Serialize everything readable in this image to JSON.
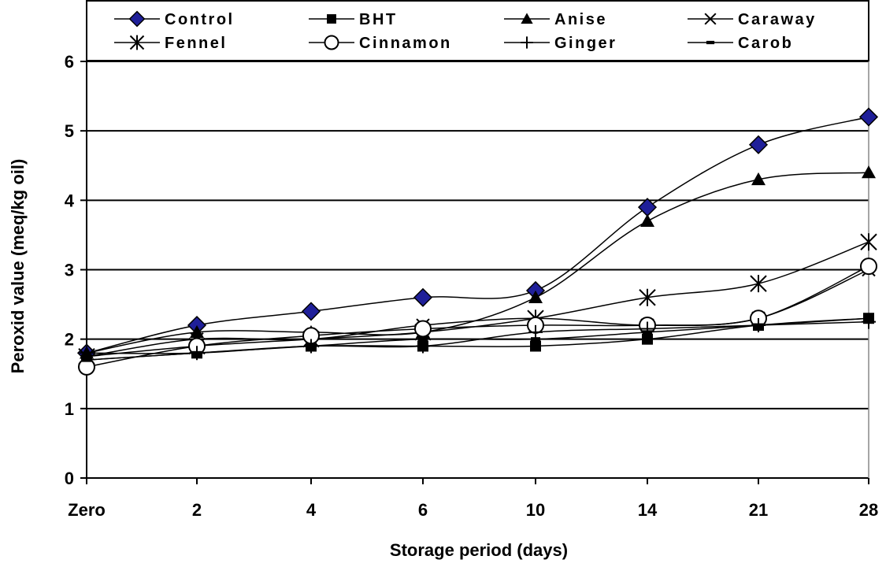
{
  "chart_data": {
    "type": "line",
    "xlabel": "Storage period (days)",
    "ylabel": "Peroxid value (meq/kg oil)",
    "categories": [
      "Zero",
      "2",
      "4",
      "6",
      "10",
      "14",
      "21",
      "28"
    ],
    "ylim": [
      0,
      6
    ],
    "yticks": [
      "0",
      "1",
      "2",
      "3",
      "4",
      "5",
      "6"
    ],
    "grid": "horizontal",
    "legend_position": "top",
    "series": [
      {
        "name": "Control",
        "marker": "diamond",
        "color": "#1f1f99",
        "values": [
          1.8,
          2.2,
          2.4,
          2.6,
          2.7,
          3.9,
          4.8,
          5.2
        ]
      },
      {
        "name": "BHT",
        "marker": "square",
        "color": "#000000",
        "values": [
          1.7,
          1.8,
          1.9,
          1.9,
          1.9,
          2.0,
          2.2,
          2.3
        ]
      },
      {
        "name": "Anise",
        "marker": "triangle",
        "color": "#000000",
        "values": [
          1.8,
          2.1,
          2.1,
          2.1,
          2.6,
          3.7,
          4.3,
          4.4
        ]
      },
      {
        "name": "Caraway",
        "marker": "x",
        "color": "#000000",
        "values": [
          1.75,
          2.0,
          2.0,
          2.2,
          2.3,
          2.2,
          2.3,
          3.0
        ]
      },
      {
        "name": "Fennel",
        "marker": "star",
        "color": "#000000",
        "values": [
          1.75,
          1.9,
          2.0,
          2.1,
          2.3,
          2.6,
          2.8,
          3.4
        ]
      },
      {
        "name": "Cinnamon",
        "marker": "circle",
        "color": "#000000",
        "values": [
          1.6,
          1.9,
          2.05,
          2.15,
          2.2,
          2.2,
          2.3,
          3.05
        ]
      },
      {
        "name": "Ginger",
        "marker": "plus",
        "color": "#000000",
        "values": [
          1.8,
          1.8,
          1.9,
          1.9,
          2.1,
          2.15,
          2.2,
          2.25
        ]
      },
      {
        "name": "Carob",
        "marker": "dash",
        "color": "#000000",
        "values": [
          1.7,
          1.8,
          1.9,
          2.0,
          2.0,
          2.1,
          2.2,
          2.3
        ]
      }
    ]
  }
}
